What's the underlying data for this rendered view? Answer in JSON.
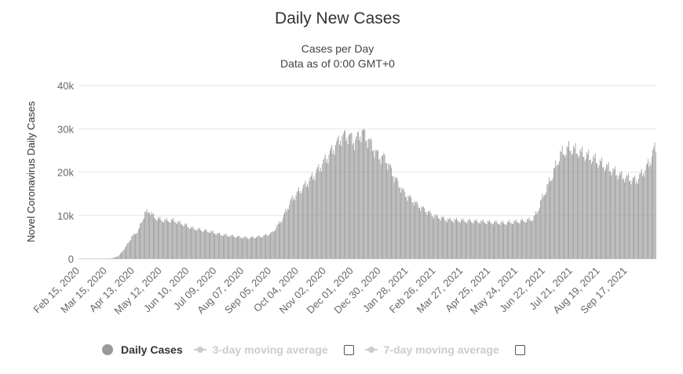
{
  "chart_data": {
    "type": "bar",
    "title": "Daily New Cases",
    "subtitle_lines": [
      "Cases per Day",
      "Data as of 0:00 GMT+0"
    ],
    "ylabel": "Novel Coronavirus Daily Cases",
    "xlabel": "",
    "ylim": [
      0,
      40000
    ],
    "y_ticks": [
      0,
      10000,
      20000,
      30000,
      40000
    ],
    "y_tick_labels": [
      "0",
      "10k",
      "20k",
      "30k",
      "40k"
    ],
    "x_tick_labels": [
      "Feb 15, 2020",
      "Mar 15, 2020",
      "Apr 13, 2020",
      "May 12, 2020",
      "Jun 10, 2020",
      "Jul 09, 2020",
      "Aug 07, 2020",
      "Sep 05, 2020",
      "Oct 04, 2020",
      "Nov 02, 2020",
      "Dec 01, 2020",
      "Dec 30, 2020",
      "Jan 28, 2021",
      "Feb 26, 2021",
      "Mar 27, 2021",
      "Apr 25, 2021",
      "May 24, 2021",
      "Jun 22, 2021",
      "Jul 21, 2021",
      "Aug 19, 2021",
      "Sep 17, 2021"
    ],
    "start_date": "Feb 15, 2020",
    "days": 612,
    "tick_interval_days": 29,
    "series": [
      {
        "name": "Daily Cases",
        "color": "#999999",
        "trend_points": [
          [
            0,
            0
          ],
          [
            28,
            0
          ],
          [
            35,
            100
          ],
          [
            42,
            600
          ],
          [
            49,
            2500
          ],
          [
            56,
            5000
          ],
          [
            63,
            6500
          ],
          [
            70,
            10500
          ],
          [
            75,
            11000
          ],
          [
            80,
            9500
          ],
          [
            90,
            8800
          ],
          [
            100,
            8800
          ],
          [
            110,
            8000
          ],
          [
            120,
            7000
          ],
          [
            140,
            6200
          ],
          [
            150,
            5600
          ],
          [
            170,
            5000
          ],
          [
            180,
            4800
          ],
          [
            195,
            5200
          ],
          [
            205,
            6000
          ],
          [
            215,
            9000
          ],
          [
            225,
            13500
          ],
          [
            233,
            15500
          ],
          [
            240,
            17000
          ],
          [
            250,
            19500
          ],
          [
            260,
            22500
          ],
          [
            270,
            25500
          ],
          [
            278,
            28000
          ],
          [
            285,
            28500
          ],
          [
            292,
            27000
          ],
          [
            300,
            29300
          ],
          [
            308,
            27000
          ],
          [
            316,
            24000
          ],
          [
            325,
            23000
          ],
          [
            335,
            18500
          ],
          [
            345,
            15000
          ],
          [
            360,
            12200
          ],
          [
            375,
            10000
          ],
          [
            390,
            9000
          ],
          [
            410,
            8700
          ],
          [
            430,
            8500
          ],
          [
            450,
            8200
          ],
          [
            470,
            8700
          ],
          [
            480,
            9000
          ],
          [
            485,
            10500
          ],
          [
            490,
            13500
          ],
          [
            496,
            16500
          ],
          [
            502,
            19500
          ],
          [
            510,
            24000
          ],
          [
            520,
            25500
          ],
          [
            530,
            24500
          ],
          [
            545,
            23000
          ],
          [
            560,
            21000
          ],
          [
            575,
            19000
          ],
          [
            590,
            18000
          ],
          [
            598,
            20000
          ],
          [
            604,
            22000
          ],
          [
            609,
            25000
          ],
          [
            612,
            26000
          ]
        ]
      }
    ]
  },
  "legend": {
    "daily_cases": "Daily Cases",
    "ma3": "3-day moving average",
    "ma7": "7-day moving average"
  },
  "colors": {
    "bar": "#999999",
    "grid": "#e6e6e6",
    "axis_text": "#666666",
    "inactive": "#cccccc"
  }
}
